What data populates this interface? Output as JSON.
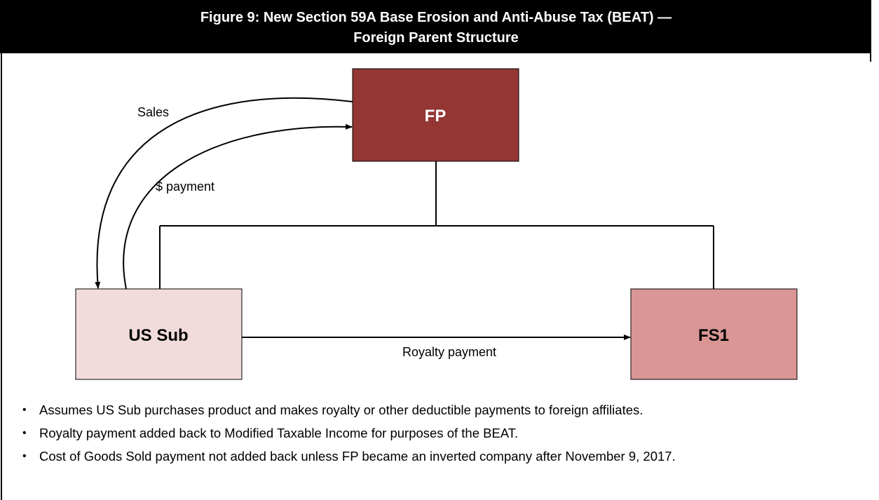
{
  "header": {
    "title": [
      "Figure 9: New Section 59A Base Erosion and Anti-Abuse Tax (BEAT) —",
      "Foreign Parent Structure"
    ]
  },
  "nodes": [
    {
      "label": "FP"
    },
    {
      "label": "US Sub"
    },
    {
      "label": "FS1"
    }
  ],
  "edges": [
    {
      "label": "Sales"
    },
    {
      "label": "$ payment"
    },
    {
      "label": "Royalty payment"
    }
  ],
  "bullets": [
    "Assumes US Sub purchases product and makes royalty or other deductible payments to foreign affiliates.",
    "Royalty payment added back to Modified Taxable Income for purposes of the BEAT.",
    "Cost of Goods Sold payment not added back unless FP became an inverted company after November 9, 2017."
  ]
}
